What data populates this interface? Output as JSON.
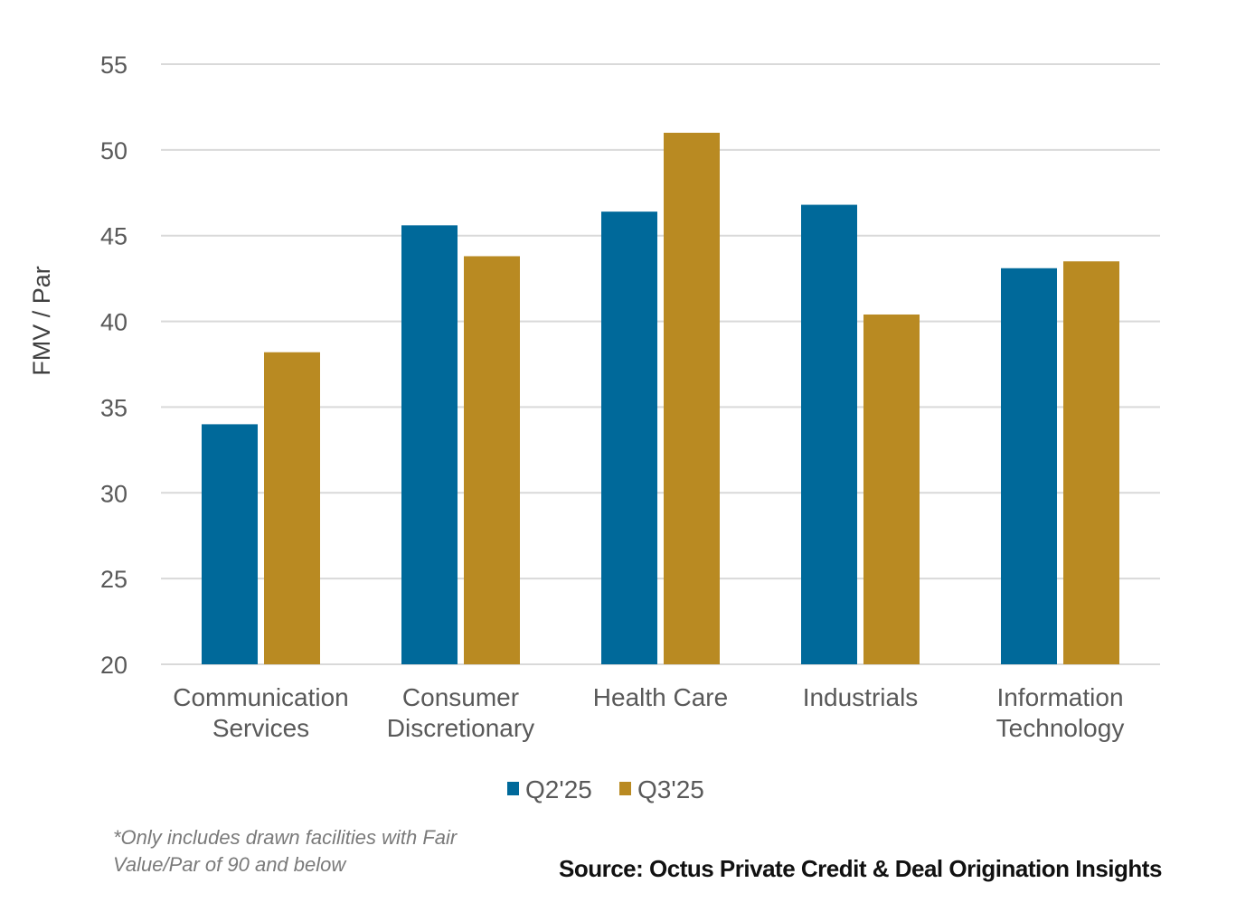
{
  "chart_data": {
    "type": "bar",
    "title": "",
    "xlabel": "",
    "ylabel": "FMV / Par",
    "ylim": [
      20,
      55
    ],
    "yticks": [
      20,
      25,
      30,
      35,
      40,
      45,
      50,
      55
    ],
    "grid": true,
    "legend_position": "bottom",
    "categories": [
      [
        "Communication",
        "Services"
      ],
      [
        "Consumer",
        "Discretionary"
      ],
      [
        "Health Care"
      ],
      [
        "Industrials"
      ],
      [
        "Information",
        "Technology"
      ]
    ],
    "series": [
      {
        "name": "Q2'25",
        "color": "#00699a",
        "values": [
          34.0,
          45.6,
          46.4,
          46.8,
          43.1
        ]
      },
      {
        "name": "Q3'25",
        "color": "#b98a22",
        "values": [
          38.2,
          43.8,
          51.0,
          40.4,
          43.5
        ]
      }
    ]
  },
  "footnote": "*Only includes drawn facilities with Fair Value/Par of 90 and below",
  "source": "Source: Octus Private Credit & Deal Origination Insights"
}
